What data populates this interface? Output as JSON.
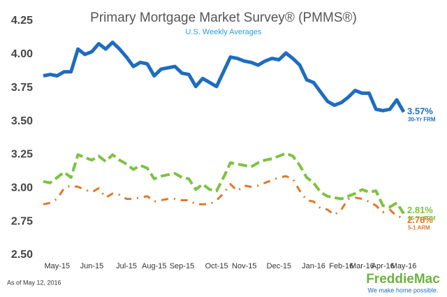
{
  "chart_data": {
    "type": "line",
    "title": "Primary Mortgage Market Survey® (PMMS®)",
    "subtitle": "U.S. Weekly Averages",
    "note": "As of May 12, 2016",
    "logo": "FreddieMac",
    "tagline": "We make home possible.",
    "categories": [
      null,
      null,
      "May-15",
      null,
      null,
      null,
      null,
      "Jun-15",
      null,
      null,
      null,
      null,
      "Jul-15",
      null,
      null,
      null,
      "Aug-15",
      null,
      null,
      null,
      "Sep-15",
      null,
      null,
      null,
      null,
      "Oct-15",
      null,
      null,
      null,
      "Nov-15",
      null,
      null,
      null,
      null,
      "Dec-15",
      null,
      null,
      null,
      null,
      "Jan-16",
      null,
      null,
      null,
      "Feb-16",
      null,
      null,
      "Mar-16",
      null,
      null,
      "Apr-16",
      null,
      null,
      "May-16"
    ],
    "ylim": [
      2.5,
      4.25
    ],
    "yticks": [
      {
        "value": 2.5,
        "label": "2.50"
      },
      {
        "value": 2.75,
        "label": "2.75"
      },
      {
        "value": 3,
        "label": "3.00"
      },
      {
        "value": 3.25,
        "label": "3.25"
      },
      {
        "value": 3.5,
        "label": "3.50"
      },
      {
        "value": 3.75,
        "label": "3.75"
      },
      {
        "value": 4,
        "label": "4.00"
      },
      {
        "value": 4.25,
        "label": "4.25"
      }
    ],
    "grid": false,
    "series": [
      {
        "name": "30-Yr FRM",
        "color": "#1f6cc0",
        "style": "solid",
        "values": [
          3.84,
          3.85,
          3.84,
          3.87,
          3.87,
          4.04,
          4.0,
          4.02,
          4.08,
          4.04,
          4.09,
          4.04,
          3.98,
          3.91,
          3.94,
          3.93,
          3.84,
          3.89,
          3.9,
          3.91,
          3.86,
          3.85,
          3.76,
          3.82,
          3.79,
          3.76,
          3.87,
          3.98,
          3.97,
          3.95,
          3.94,
          3.92,
          3.95,
          3.97,
          3.96,
          4.01,
          3.97,
          3.92,
          3.81,
          3.79,
          3.72,
          3.65,
          3.62,
          3.64,
          3.68,
          3.73,
          3.71,
          3.71,
          3.59,
          3.58,
          3.59,
          3.66,
          3.57
        ],
        "value_labels": {
          "52": "3.57%"
        }
      },
      {
        "name": "15-Yr FRM",
        "color": "#7dc242",
        "style": "dashed",
        "values": [
          3.05,
          3.04,
          3.08,
          3.12,
          3.08,
          3.25,
          3.23,
          3.21,
          3.24,
          3.2,
          3.25,
          3.21,
          3.18,
          3.14,
          3.17,
          3.15,
          3.07,
          3.09,
          3.1,
          3.11,
          3.08,
          3.07,
          2.99,
          3.03,
          2.99,
          2.98,
          3.08,
          3.19,
          3.18,
          3.17,
          3.16,
          3.19,
          3.21,
          3.22,
          3.24,
          3.26,
          3.24,
          3.17,
          3.08,
          3.04,
          2.97,
          2.94,
          2.93,
          2.92,
          2.94,
          2.96,
          2.99,
          2.97,
          2.98,
          2.87,
          2.86,
          2.89,
          2.81
        ],
        "value_labels": {
          "52": "2.81%"
        }
      },
      {
        "name": "5-1 ARM",
        "color": "#e0782a",
        "style": "dashdot",
        "values": [
          2.88,
          2.89,
          2.92,
          3.0,
          3.02,
          3.01,
          2.99,
          2.97,
          3.0,
          2.93,
          2.96,
          2.95,
          2.92,
          2.92,
          2.93,
          2.94,
          2.9,
          2.91,
          2.92,
          2.92,
          2.91,
          2.91,
          2.88,
          2.88,
          2.88,
          2.91,
          2.96,
          3.03,
          2.98,
          3.02,
          3.01,
          3.02,
          3.04,
          3.06,
          3.08,
          3.09,
          3.07,
          2.98,
          2.91,
          2.9,
          2.85,
          2.84,
          2.8,
          2.84,
          2.92,
          2.93,
          2.92,
          2.9,
          2.87,
          2.82,
          2.84,
          2.79,
          2.78
        ],
        "value_labels": {
          "52": "2.78%"
        }
      }
    ]
  }
}
